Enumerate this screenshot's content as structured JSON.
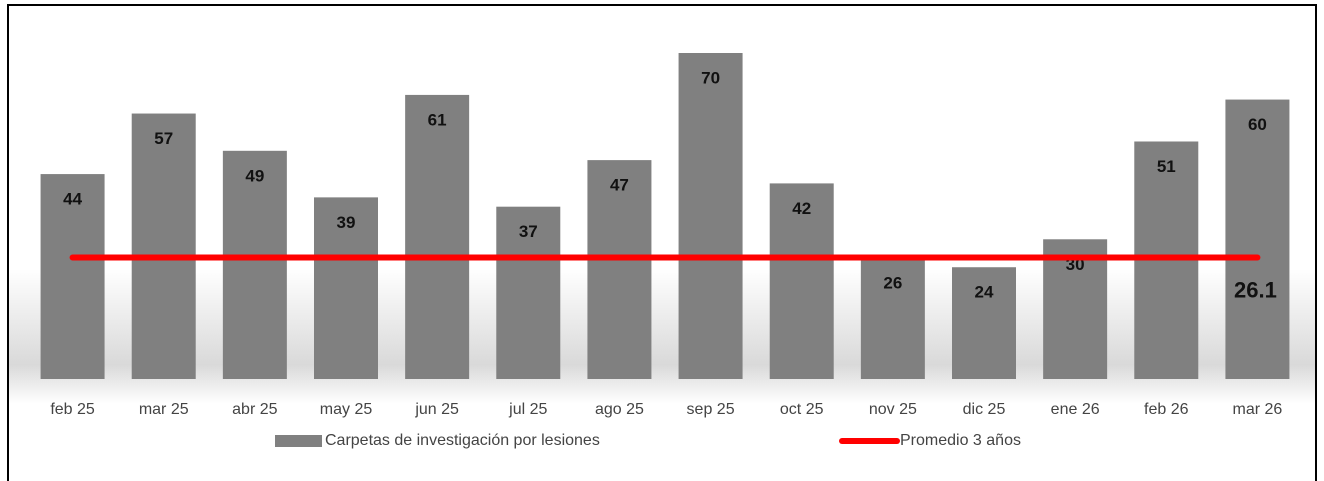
{
  "chart_data": {
    "type": "bar",
    "categories": [
      "feb 25",
      "mar 25",
      "abr 25",
      "may 25",
      "jun 25",
      "jul 25",
      "ago 25",
      "sep 25",
      "oct 25",
      "nov 25",
      "dic 25",
      "ene 26",
      "feb 26",
      "mar 26"
    ],
    "series": [
      {
        "name": "Carpetas de investigación por lesiones",
        "type": "bar",
        "color": "#808080",
        "values": [
          44,
          57,
          49,
          39,
          61,
          37,
          47,
          70,
          42,
          26,
          24,
          30,
          51,
          60
        ]
      },
      {
        "name": "Promedio 3 años",
        "type": "line",
        "color": "#ff0000",
        "values": [
          26.1,
          26.1,
          26.1,
          26.1,
          26.1,
          26.1,
          26.1,
          26.1,
          26.1,
          26.1,
          26.1,
          26.1,
          26.1,
          26.1
        ]
      }
    ],
    "ylim": [
      0,
      70
    ],
    "legend": "bottom"
  }
}
